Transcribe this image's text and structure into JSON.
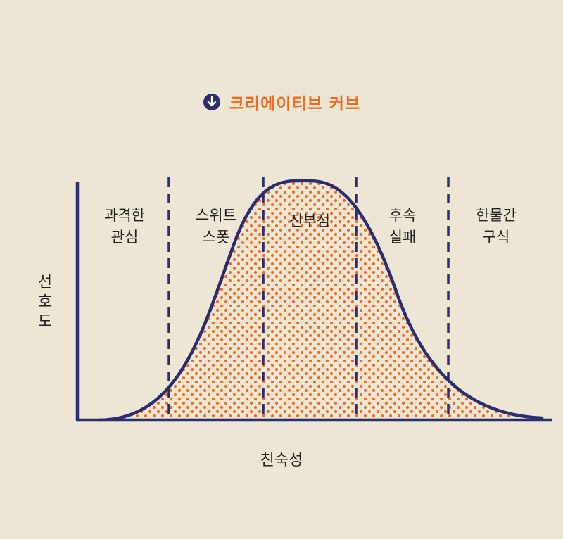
{
  "title": {
    "icon": "arrow-down-circle-icon",
    "text": "크리에이티브 커브"
  },
  "axes": {
    "y_label": "선호도",
    "x_label": "친숙성"
  },
  "zones": [
    {
      "line1": "과격한",
      "line2": "관심"
    },
    {
      "line1": "스위트",
      "line2": "스폿"
    },
    {
      "line1": "진부점",
      "line2": ""
    },
    {
      "line1": "후속",
      "line2": "실패"
    },
    {
      "line1": "한물간",
      "line2": "구식"
    }
  ],
  "colors": {
    "curve": "#2a2d6e",
    "dots": "#f06d20",
    "title": "#f06d20",
    "background": "#ede6d4"
  }
}
